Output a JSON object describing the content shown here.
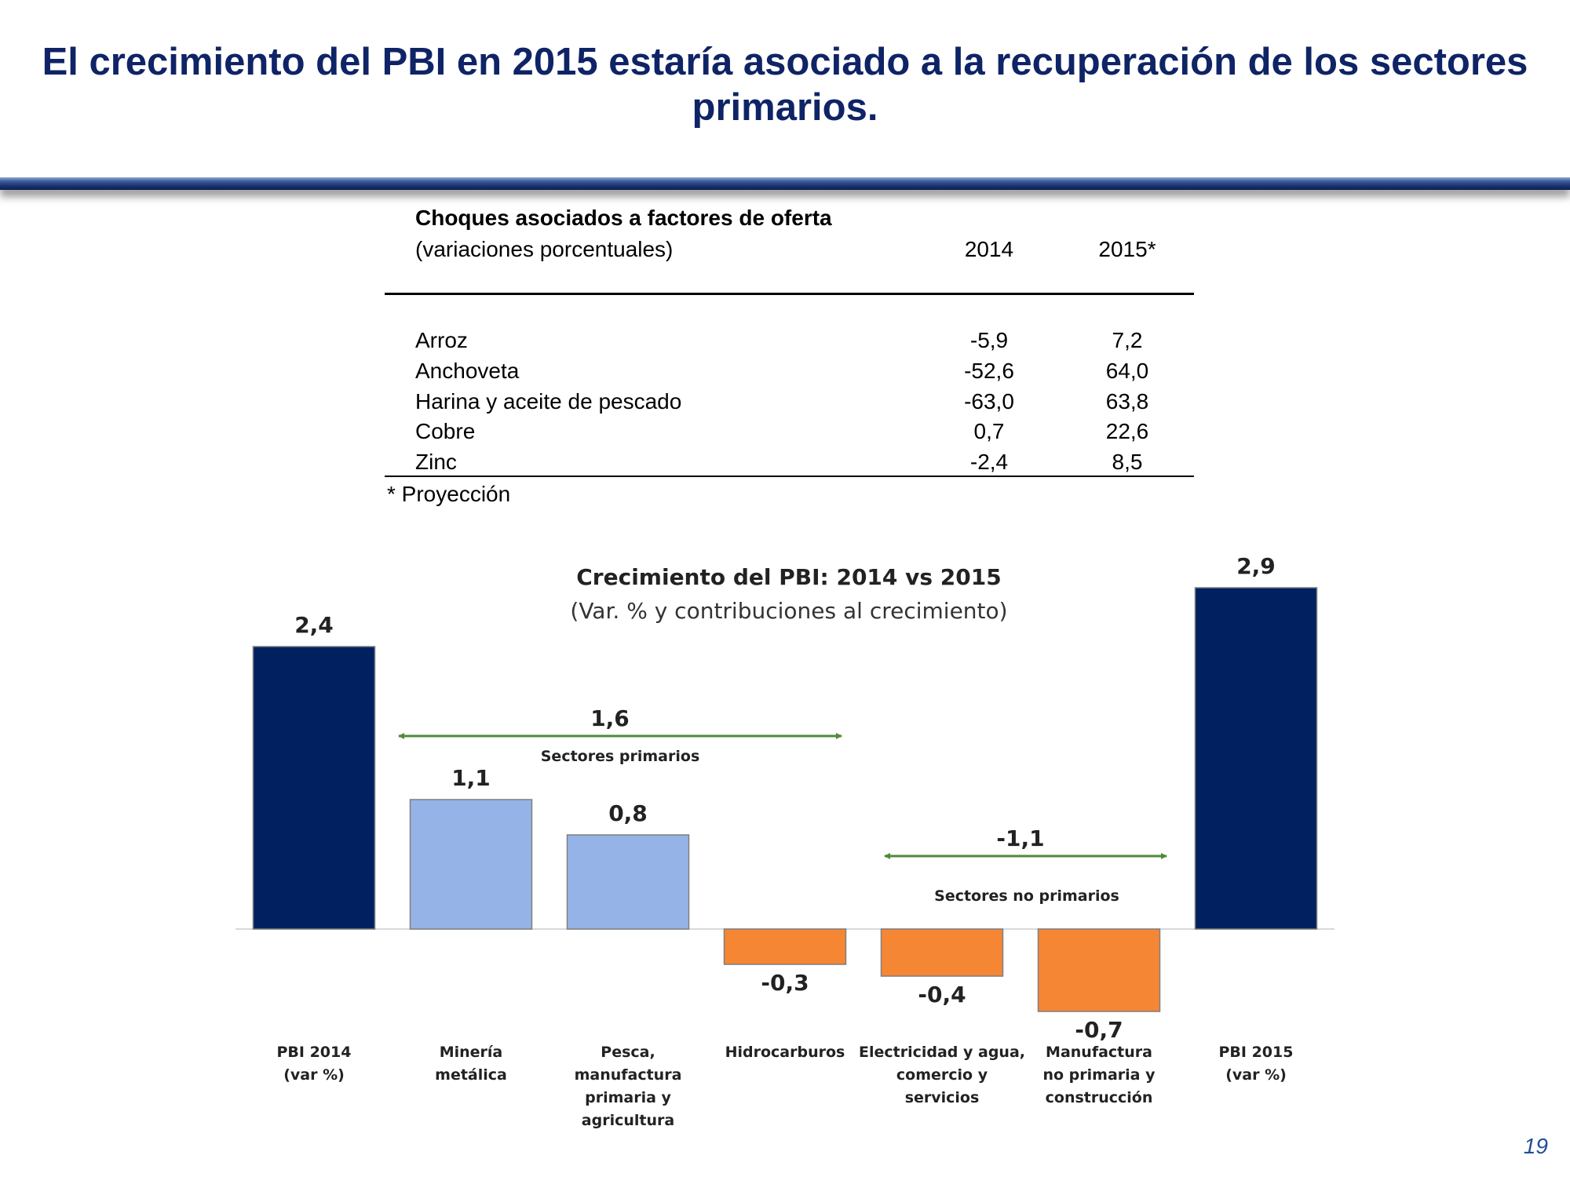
{
  "slide": {
    "title": "El crecimiento del PBI en 2015 estaría asociado a la recuperación de los sectores primarios.",
    "page_number": "19"
  },
  "table": {
    "title": "Choques asociados a factores de oferta",
    "subtitle": "(variaciones porcentuales)",
    "columns": [
      "2014",
      "2015*"
    ],
    "rows": [
      {
        "label": "Arroz",
        "v2014": "-5,9",
        "v2015": "7,2"
      },
      {
        "label": "Anchoveta",
        "v2014": "-52,6",
        "v2015": "64,0"
      },
      {
        "label": "Harina y aceite de pescado",
        "v2014": "-63,0",
        "v2015": "63,8"
      },
      {
        "label": "Cobre",
        "v2014": "0,7",
        "v2015": "22,6"
      },
      {
        "label": "Zinc",
        "v2014": "-2,4",
        "v2015": "8,5"
      }
    ],
    "footnote": "* Proyección"
  },
  "chart_data": {
    "type": "bar",
    "title": "Crecimiento del PBI: 2014 vs 2015",
    "subtitle": "(Var. % y contribuciones al crecimiento)",
    "categories": [
      [
        "PBI 2014",
        "(var %)"
      ],
      [
        "Minería",
        "metálica"
      ],
      [
        "Pesca,",
        "manufactura",
        "primaria y",
        "agricultura"
      ],
      [
        "Hidrocarburos"
      ],
      [
        "Electricidad y agua,",
        "comercio y",
        "servicios"
      ],
      [
        "Manufactura",
        "no primaria y",
        "construcción"
      ],
      [
        "PBI 2015",
        "(var %)"
      ]
    ],
    "values": [
      2.4,
      1.1,
      0.8,
      -0.3,
      -0.4,
      -0.7,
      2.9
    ],
    "value_labels": [
      "2,4",
      "1,1",
      "0,8",
      "-0,3",
      "-0,4",
      "-0,7",
      "2,9"
    ],
    "bar_colors": [
      "#002060",
      "#95b3e6",
      "#95b3e6",
      "#f58634",
      "#f58634",
      "#f58634",
      "#002060"
    ],
    "annotations": [
      {
        "value": "1,6",
        "label": "Sectores primarios",
        "from_category": 1,
        "to_category": 2
      },
      {
        "value": "-1,1",
        "label": "Sectores no primarios",
        "from_category": 4,
        "to_category": 5
      }
    ],
    "annotation_color": "#4f8a3a"
  }
}
